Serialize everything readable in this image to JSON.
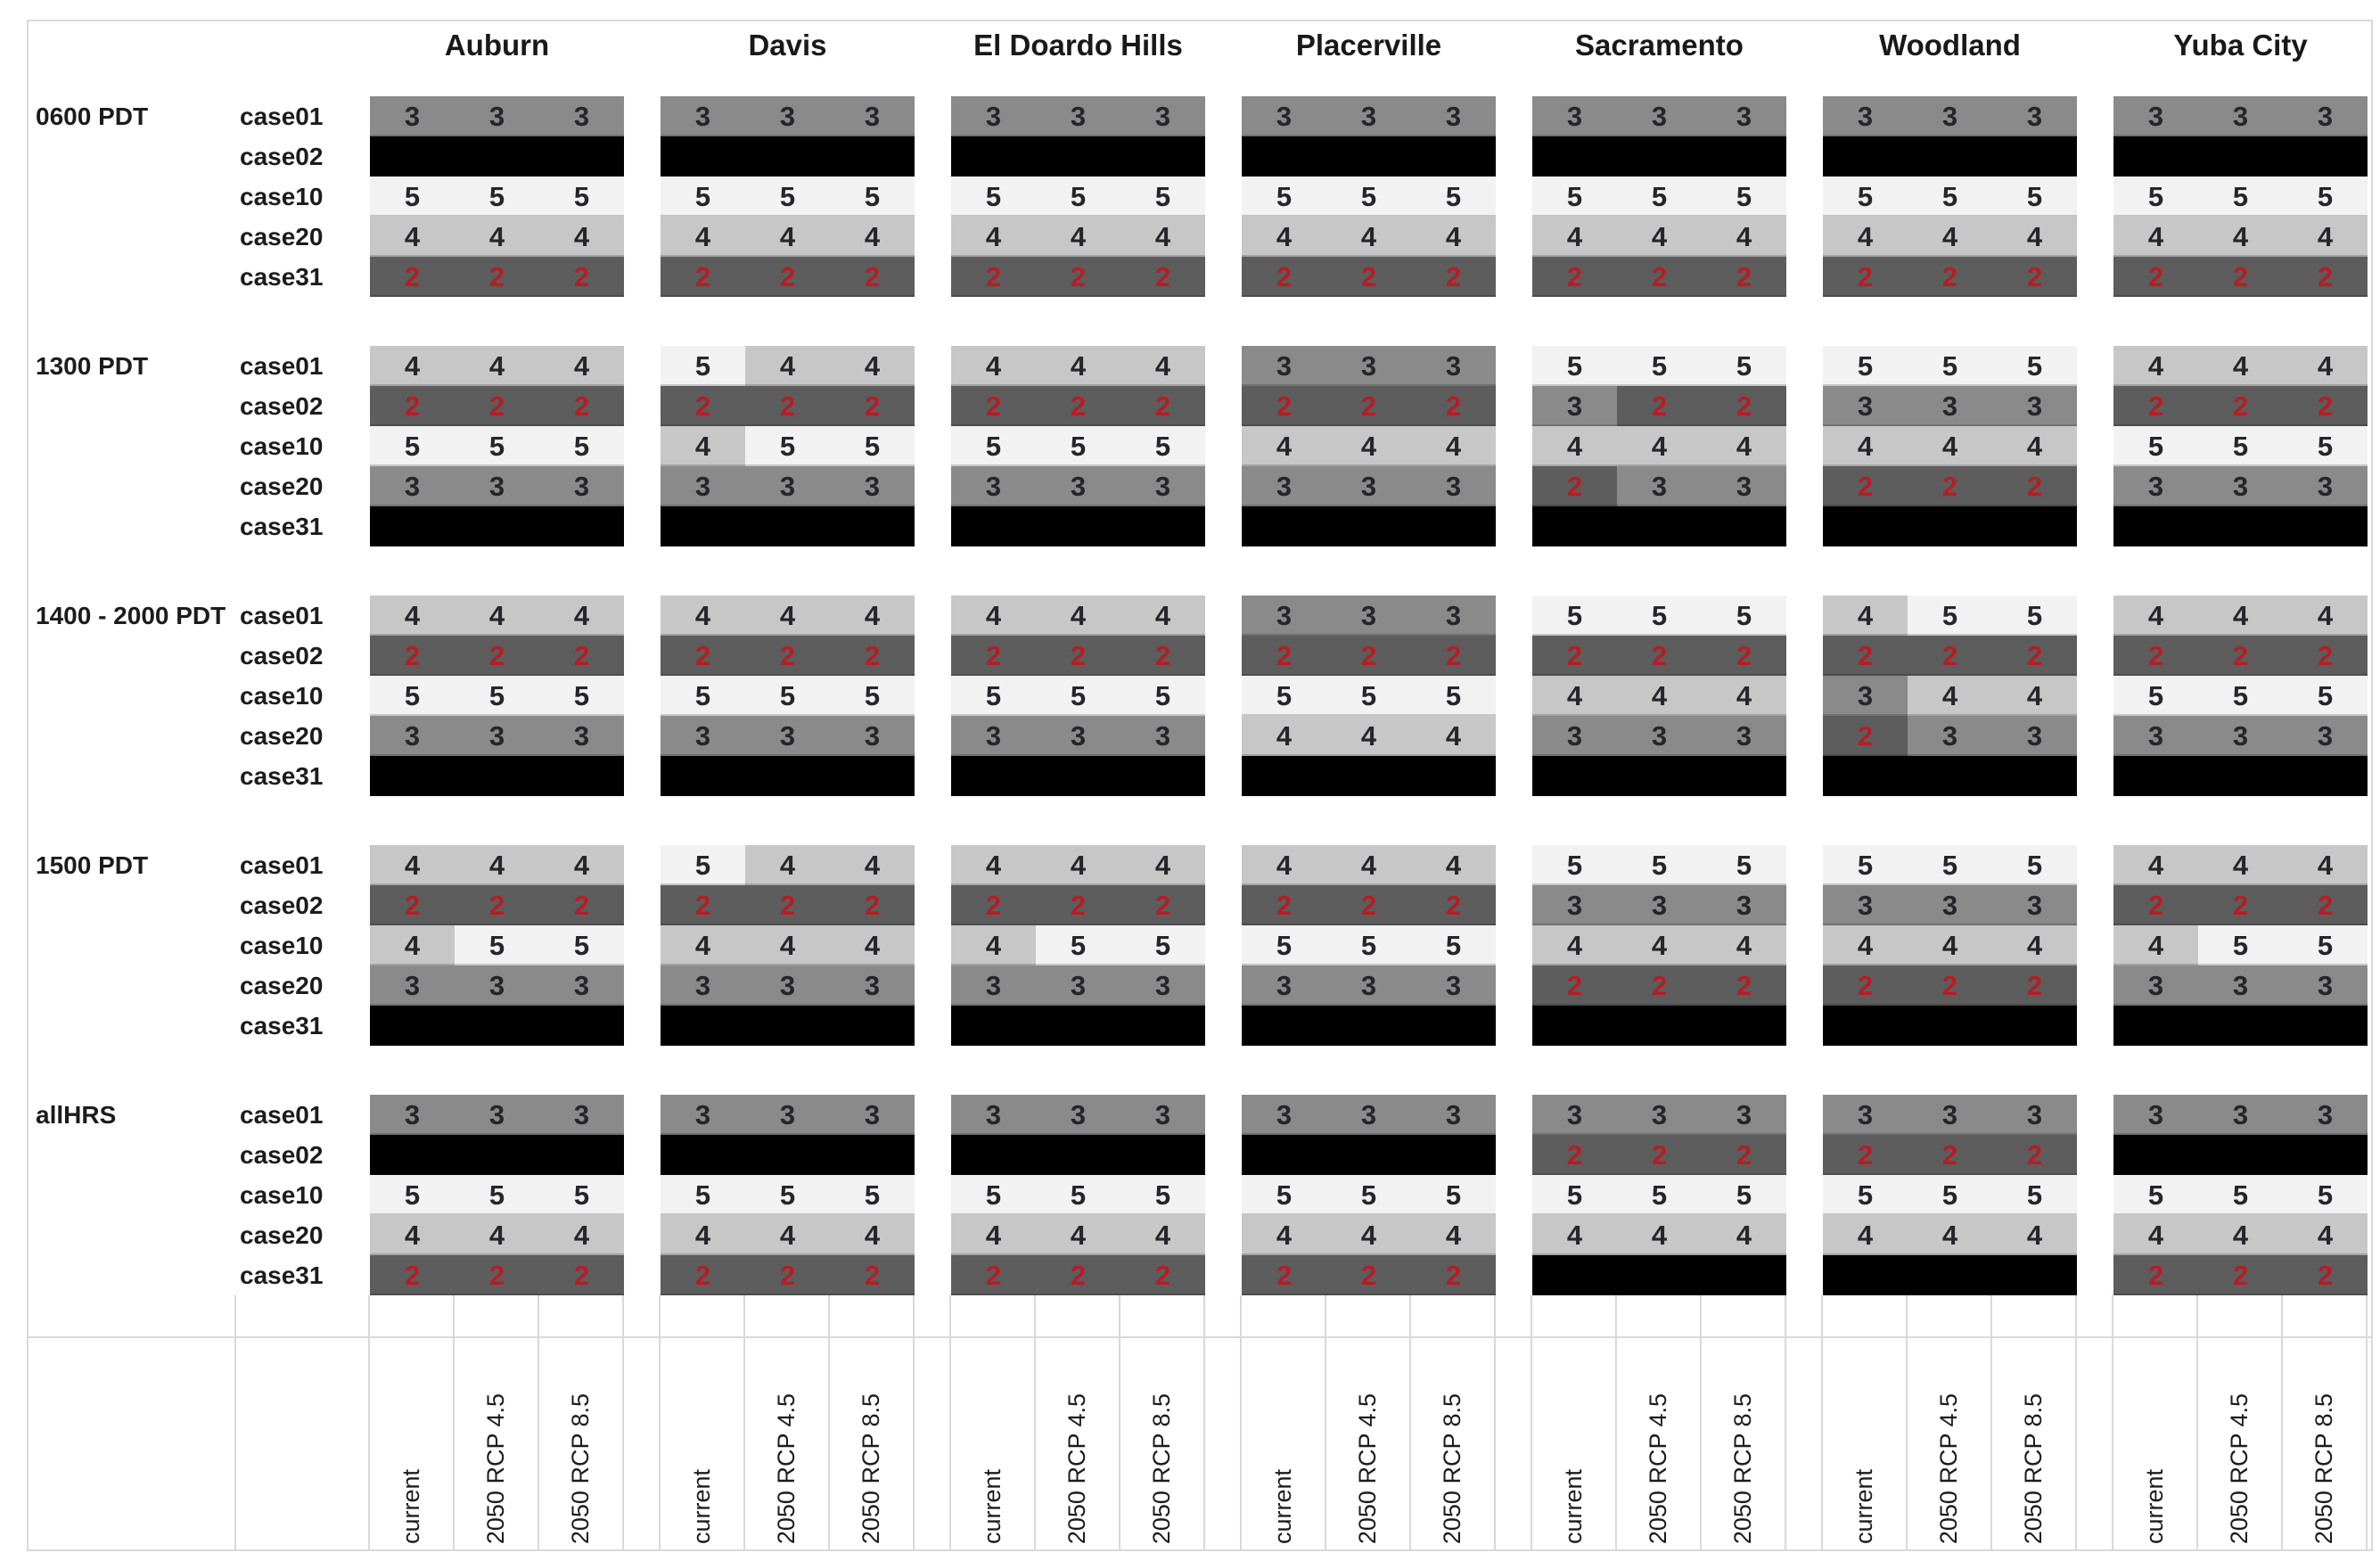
{
  "chart_data": {
    "type": "heatmap",
    "title": "",
    "columns_cities": [
      "Auburn",
      "Davis",
      "El Doardo Hills",
      "Placerville",
      "Sacramento",
      "Woodland",
      "Yuba City"
    ],
    "column_scenarios": [
      "current",
      "2050 RCP 4.5",
      "2050 RCP 8.5"
    ],
    "row_cases": [
      "case01",
      "case02",
      "case10",
      "case20",
      "case31"
    ],
    "time_blocks": [
      {
        "label": "0600 PDT",
        "rows": [
          {
            "case": "case01",
            "values": [
              [
                3,
                3,
                3
              ],
              [
                3,
                3,
                3
              ],
              [
                3,
                3,
                3
              ],
              [
                3,
                3,
                3
              ],
              [
                3,
                3,
                3
              ],
              [
                3,
                3,
                3
              ],
              [
                3,
                3,
                3
              ]
            ]
          },
          {
            "case": "case02",
            "values": [
              [
                null,
                null,
                null
              ],
              [
                null,
                null,
                null
              ],
              [
                null,
                null,
                null
              ],
              [
                null,
                null,
                null
              ],
              [
                null,
                null,
                null
              ],
              [
                null,
                null,
                null
              ],
              [
                null,
                null,
                null
              ]
            ]
          },
          {
            "case": "case10",
            "values": [
              [
                5,
                5,
                5
              ],
              [
                5,
                5,
                5
              ],
              [
                5,
                5,
                5
              ],
              [
                5,
                5,
                5
              ],
              [
                5,
                5,
                5
              ],
              [
                5,
                5,
                5
              ],
              [
                5,
                5,
                5
              ]
            ]
          },
          {
            "case": "case20",
            "values": [
              [
                4,
                4,
                4
              ],
              [
                4,
                4,
                4
              ],
              [
                4,
                4,
                4
              ],
              [
                4,
                4,
                4
              ],
              [
                4,
                4,
                4
              ],
              [
                4,
                4,
                4
              ],
              [
                4,
                4,
                4
              ]
            ]
          },
          {
            "case": "case31",
            "values": [
              [
                2,
                2,
                2
              ],
              [
                2,
                2,
                2
              ],
              [
                2,
                2,
                2
              ],
              [
                2,
                2,
                2
              ],
              [
                2,
                2,
                2
              ],
              [
                2,
                2,
                2
              ],
              [
                2,
                2,
                2
              ]
            ]
          }
        ]
      },
      {
        "label": "1300 PDT",
        "rows": [
          {
            "case": "case01",
            "values": [
              [
                4,
                4,
                4
              ],
              [
                5,
                4,
                4
              ],
              [
                4,
                4,
                4
              ],
              [
                3,
                3,
                3
              ],
              [
                5,
                5,
                5
              ],
              [
                5,
                5,
                5
              ],
              [
                4,
                4,
                4
              ]
            ]
          },
          {
            "case": "case02",
            "values": [
              [
                2,
                2,
                2
              ],
              [
                2,
                2,
                2
              ],
              [
                2,
                2,
                2
              ],
              [
                2,
                2,
                2
              ],
              [
                3,
                2,
                2
              ],
              [
                3,
                3,
                3
              ],
              [
                2,
                2,
                2
              ]
            ]
          },
          {
            "case": "case10",
            "values": [
              [
                5,
                5,
                5
              ],
              [
                4,
                5,
                5
              ],
              [
                5,
                5,
                5
              ],
              [
                4,
                4,
                4
              ],
              [
                4,
                4,
                4
              ],
              [
                4,
                4,
                4
              ],
              [
                5,
                5,
                5
              ]
            ]
          },
          {
            "case": "case20",
            "values": [
              [
                3,
                3,
                3
              ],
              [
                3,
                3,
                3
              ],
              [
                3,
                3,
                3
              ],
              [
                3,
                3,
                3
              ],
              [
                2,
                3,
                3
              ],
              [
                2,
                2,
                2
              ],
              [
                3,
                3,
                3
              ]
            ]
          },
          {
            "case": "case31",
            "values": [
              [
                null,
                null,
                null
              ],
              [
                null,
                null,
                null
              ],
              [
                null,
                null,
                null
              ],
              [
                null,
                null,
                null
              ],
              [
                null,
                null,
                null
              ],
              [
                null,
                null,
                null
              ],
              [
                null,
                null,
                null
              ]
            ]
          }
        ]
      },
      {
        "label": "1400 - 2000 PDT",
        "rows": [
          {
            "case": "case01",
            "values": [
              [
                4,
                4,
                4
              ],
              [
                4,
                4,
                4
              ],
              [
                4,
                4,
                4
              ],
              [
                3,
                3,
                3
              ],
              [
                5,
                5,
                5
              ],
              [
                4,
                5,
                5
              ],
              [
                4,
                4,
                4
              ]
            ]
          },
          {
            "case": "case02",
            "values": [
              [
                2,
                2,
                2
              ],
              [
                2,
                2,
                2
              ],
              [
                2,
                2,
                2
              ],
              [
                2,
                2,
                2
              ],
              [
                2,
                2,
                2
              ],
              [
                2,
                2,
                2
              ],
              [
                2,
                2,
                2
              ]
            ]
          },
          {
            "case": "case10",
            "values": [
              [
                5,
                5,
                5
              ],
              [
                5,
                5,
                5
              ],
              [
                5,
                5,
                5
              ],
              [
                5,
                5,
                5
              ],
              [
                4,
                4,
                4
              ],
              [
                3,
                4,
                4
              ],
              [
                5,
                5,
                5
              ]
            ]
          },
          {
            "case": "case20",
            "values": [
              [
                3,
                3,
                3
              ],
              [
                3,
                3,
                3
              ],
              [
                3,
                3,
                3
              ],
              [
                4,
                4,
                4
              ],
              [
                3,
                3,
                3
              ],
              [
                2,
                3,
                3
              ],
              [
                3,
                3,
                3
              ]
            ]
          },
          {
            "case": "case31",
            "values": [
              [
                null,
                null,
                null
              ],
              [
                null,
                null,
                null
              ],
              [
                null,
                null,
                null
              ],
              [
                null,
                null,
                null
              ],
              [
                null,
                null,
                null
              ],
              [
                null,
                null,
                null
              ],
              [
                null,
                null,
                null
              ]
            ]
          }
        ]
      },
      {
        "label": "1500 PDT",
        "rows": [
          {
            "case": "case01",
            "values": [
              [
                4,
                4,
                4
              ],
              [
                5,
                4,
                4
              ],
              [
                4,
                4,
                4
              ],
              [
                4,
                4,
                4
              ],
              [
                5,
                5,
                5
              ],
              [
                5,
                5,
                5
              ],
              [
                4,
                4,
                4
              ]
            ]
          },
          {
            "case": "case02",
            "values": [
              [
                2,
                2,
                2
              ],
              [
                2,
                2,
                2
              ],
              [
                2,
                2,
                2
              ],
              [
                2,
                2,
                2
              ],
              [
                3,
                3,
                3
              ],
              [
                3,
                3,
                3
              ],
              [
                2,
                2,
                2
              ]
            ]
          },
          {
            "case": "case10",
            "values": [
              [
                4,
                5,
                5
              ],
              [
                4,
                4,
                4
              ],
              [
                4,
                5,
                5
              ],
              [
                5,
                5,
                5
              ],
              [
                4,
                4,
                4
              ],
              [
                4,
                4,
                4
              ],
              [
                4,
                5,
                5
              ]
            ]
          },
          {
            "case": "case20",
            "values": [
              [
                3,
                3,
                3
              ],
              [
                3,
                3,
                3
              ],
              [
                3,
                3,
                3
              ],
              [
                3,
                3,
                3
              ],
              [
                2,
                2,
                2
              ],
              [
                2,
                2,
                2
              ],
              [
                3,
                3,
                3
              ]
            ]
          },
          {
            "case": "case31",
            "values": [
              [
                null,
                null,
                null
              ],
              [
                null,
                null,
                null
              ],
              [
                null,
                null,
                null
              ],
              [
                null,
                null,
                null
              ],
              [
                null,
                null,
                null
              ],
              [
                null,
                null,
                null
              ],
              [
                null,
                null,
                null
              ]
            ]
          }
        ]
      },
      {
        "label": "allHRS",
        "rows": [
          {
            "case": "case01",
            "values": [
              [
                3,
                3,
                3
              ],
              [
                3,
                3,
                3
              ],
              [
                3,
                3,
                3
              ],
              [
                3,
                3,
                3
              ],
              [
                3,
                3,
                3
              ],
              [
                3,
                3,
                3
              ],
              [
                3,
                3,
                3
              ]
            ]
          },
          {
            "case": "case02",
            "values": [
              [
                null,
                null,
                null
              ],
              [
                null,
                null,
                null
              ],
              [
                null,
                null,
                null
              ],
              [
                null,
                null,
                null
              ],
              [
                2,
                2,
                2
              ],
              [
                2,
                2,
                2
              ],
              [
                null,
                null,
                null
              ]
            ]
          },
          {
            "case": "case10",
            "values": [
              [
                5,
                5,
                5
              ],
              [
                5,
                5,
                5
              ],
              [
                5,
                5,
                5
              ],
              [
                5,
                5,
                5
              ],
              [
                5,
                5,
                5
              ],
              [
                5,
                5,
                5
              ],
              [
                5,
                5,
                5
              ]
            ]
          },
          {
            "case": "case20",
            "values": [
              [
                4,
                4,
                4
              ],
              [
                4,
                4,
                4
              ],
              [
                4,
                4,
                4
              ],
              [
                4,
                4,
                4
              ],
              [
                4,
                4,
                4
              ],
              [
                4,
                4,
                4
              ],
              [
                4,
                4,
                4
              ]
            ]
          },
          {
            "case": "case31",
            "values": [
              [
                2,
                2,
                2
              ],
              [
                2,
                2,
                2
              ],
              [
                2,
                2,
                2
              ],
              [
                2,
                2,
                2
              ],
              [
                null,
                null,
                null
              ],
              [
                null,
                null,
                null
              ],
              [
                2,
                2,
                2
              ]
            ]
          }
        ]
      }
    ],
    "value_color_map": {
      "2": "#5d5d5d",
      "3": "#8a8a8a",
      "4": "#c7c7c7",
      "5": "#f2f2f2",
      "null": "#000000"
    },
    "value_text_color": {
      "2": "#b51e24",
      "default": "#26262a"
    },
    "legend_position": "none",
    "grid": "vertical separators in footer axis area only",
    "axis_label_rotation": -90
  }
}
